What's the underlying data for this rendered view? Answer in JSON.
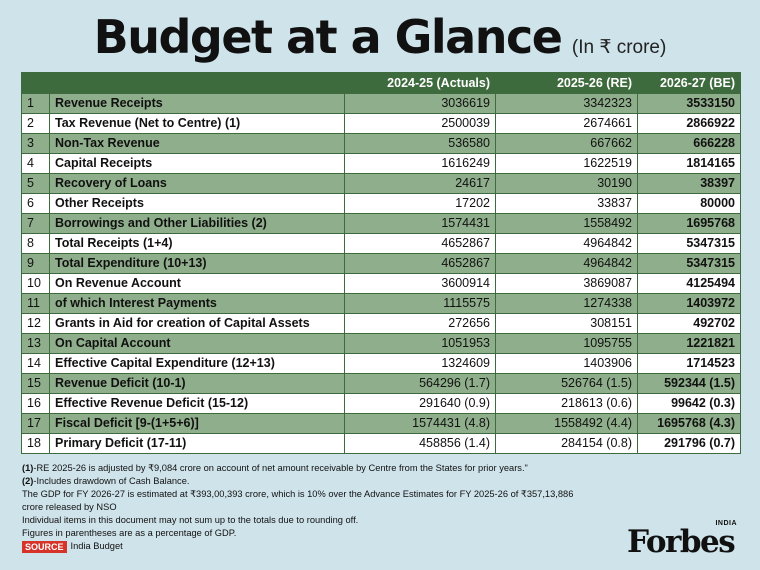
{
  "header": {
    "title": "Budget at a Glance",
    "subtitle": "(In ₹ crore)"
  },
  "table": {
    "columns": [
      "",
      "",
      "2024-25 (Actuals)",
      "2025-26 (RE)",
      "2026-27 (BE)"
    ],
    "rows": [
      {
        "num": "1",
        "label": " Revenue Receipts",
        "a": "3036619",
        "b": "3342323",
        "c": "3533150"
      },
      {
        "num": "2",
        "label": "Tax Revenue (Net to Centre) (1)",
        "a": "2500039",
        "b": "2674661",
        "c": "2866922"
      },
      {
        "num": "3",
        "label": "Non-Tax Revenue",
        "a": "536580",
        "b": "667662",
        "c": "666228"
      },
      {
        "num": "4",
        "label": "Capital Receipts",
        "a": "1616249",
        "b": "1622519",
        "c": "1814165"
      },
      {
        "num": "5",
        "label": "Recovery of Loans",
        "a": "24617",
        "b": "30190",
        "c": "38397"
      },
      {
        "num": "6",
        "label": "Other Receipts",
        "a": "17202",
        "b": "33837",
        "c": "80000"
      },
      {
        "num": "7",
        "label": "Borrowings and Other Liabilities (2)",
        "a": "1574431",
        "b": "1558492",
        "c": "1695768"
      },
      {
        "num": "8",
        "label": "Total Receipts (1+4)",
        "a": "4652867",
        "b": "4964842",
        "c": "5347315"
      },
      {
        "num": "9",
        "label": "Total Expenditure (10+13)",
        "a": "4652867",
        "b": "4964842",
        "c": "5347315"
      },
      {
        "num": "10",
        "label": "On Revenue Account",
        "a": "3600914",
        "b": "3869087",
        "c": "4125494"
      },
      {
        "num": "11",
        "label": "of which Interest Payments",
        "a": "1115575",
        "b": "1274338",
        "c": "1403972"
      },
      {
        "num": "12",
        "label": "Grants in Aid for creation of Capital Assets",
        "a": "272656",
        "b": "308151",
        "c": "492702"
      },
      {
        "num": "13",
        "label": "On Capital Account",
        "a": "1051953",
        "b": "1095755",
        "c": "1221821"
      },
      {
        "num": "14",
        "label": "Effective Capital Expenditure (12+13)",
        "a": "1324609",
        "b": "1403906",
        "c": "1714523"
      },
      {
        "num": "15",
        "label": "Revenue Deficit (10-1)",
        "a": "564296 (1.7)",
        "b": "526764 (1.5)",
        "c": "592344 (1.5)"
      },
      {
        "num": "16",
        "label": "Effective Revenue Deficit (15-12)",
        "a": "291640 (0.9)",
        "b": "218613 (0.6)",
        "c": "99642 (0.3)"
      },
      {
        "num": "17",
        "label": "Fiscal Deficit [9-(1+5+6)]",
        "a": "1574431 (4.8)",
        "b": "1558492 (4.4)",
        "c": "1695768 (4.3)"
      },
      {
        "num": "18",
        "label": "Primary Deficit (17-11)",
        "a": "458856 (1.4)",
        "b": "284154 (0.8)",
        "c": "291796 (0.7)"
      }
    ]
  },
  "notes": {
    "note1_tag": "(1)",
    "note1_text": "-RE 2025-26 is adjusted by ₹9,084 crore on account of net amount receivable by Centre from the States for prior years.\"",
    "note2_tag": "(2)",
    "note2_text": "-Includes drawdown of Cash Balance.",
    "line3": "The GDP for FY 2026-27 is estimated at ₹393,00,393 crore, which is 10% over the Advance Estimates for FY 2025-26 of ₹357,13,886 crore released by NSO",
    "line4": "Individual items in this document may not sum up to the totals due to rounding off.",
    "line5": "Figures in parentheses are as a percentage of GDP.",
    "source_label": "SOURCE",
    "source_text": "India Budget"
  },
  "logo": {
    "small": "INDIA",
    "word": "Forbes"
  }
}
